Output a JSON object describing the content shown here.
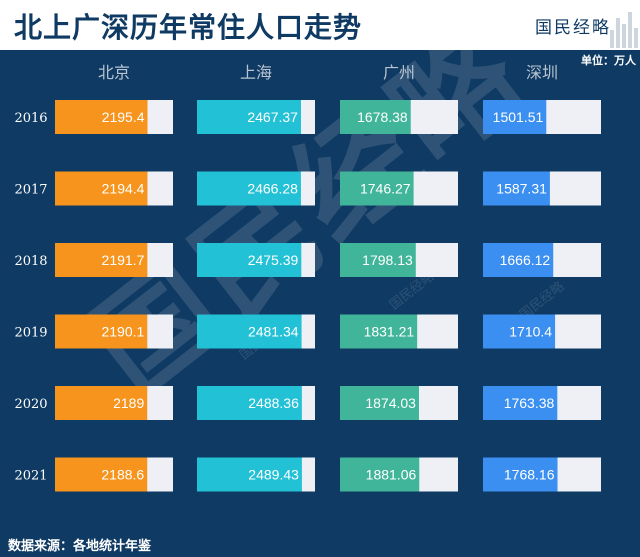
{
  "header": {
    "title": "北上广深历年常住人口走势",
    "logo": "国民经略",
    "unit": "单位：万人"
  },
  "footer": {
    "source": "数据来源：各地统计年鉴"
  },
  "watermark": "国民经略",
  "colors": {
    "background": "#0f3a63",
    "track": "#eef0f6",
    "beijing": "#f7941d",
    "shanghai": "#22c1d6",
    "guangzhou": "#40b59a",
    "shenzhen": "#3b8ff0"
  },
  "chart_data": {
    "type": "bar",
    "title": "北上广深历年常住人口走势",
    "unit": "万人",
    "categories": [
      "2016",
      "2017",
      "2018",
      "2019",
      "2020",
      "2021"
    ],
    "series": [
      {
        "name": "北京",
        "values": [
          2195.4,
          2194.4,
          2191.7,
          2190.1,
          2189,
          2188.6
        ]
      },
      {
        "name": "上海",
        "values": [
          2467.37,
          2466.28,
          2475.39,
          2481.34,
          2488.36,
          2489.43
        ]
      },
      {
        "name": "广州",
        "values": [
          1678.38,
          1746.27,
          1798.13,
          1831.21,
          1874.03,
          1881.06
        ]
      },
      {
        "name": "深圳",
        "values": [
          1501.51,
          1587.31,
          1666.12,
          1710.4,
          1763.38,
          1768.16
        ]
      }
    ]
  }
}
